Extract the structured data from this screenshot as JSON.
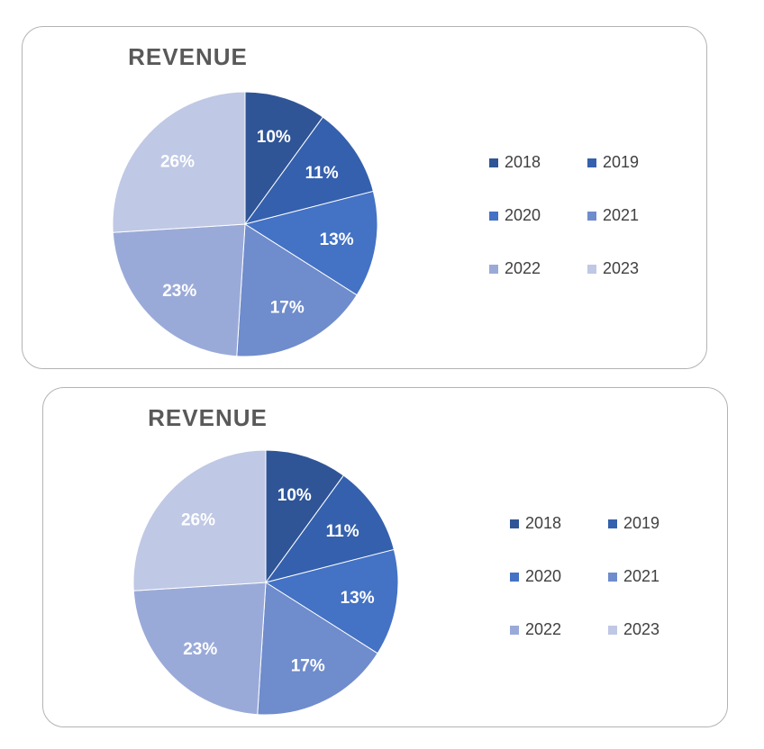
{
  "colors": [
    "#2f5597",
    "#3560ad",
    "#4472c4",
    "#6f8ccc",
    "#9aaad8",
    "#bfc8e4"
  ],
  "chart_data": [
    {
      "type": "pie",
      "title": "REVENUE",
      "categories": [
        "2018",
        "2019",
        "2020",
        "2021",
        "2022",
        "2023"
      ],
      "values": [
        10,
        11,
        13,
        17,
        23,
        26
      ],
      "labels": [
        "10%",
        "11%",
        "13%",
        "17%",
        "23%",
        "26%"
      ],
      "legend_position": "right"
    },
    {
      "type": "pie",
      "title": "REVENUE",
      "categories": [
        "2018",
        "2019",
        "2020",
        "2021",
        "2022",
        "2023"
      ],
      "values": [
        10,
        11,
        13,
        17,
        23,
        26
      ],
      "labels": [
        "10%",
        "11%",
        "13%",
        "17%",
        "23%",
        "26%"
      ],
      "legend_position": "right"
    }
  ]
}
